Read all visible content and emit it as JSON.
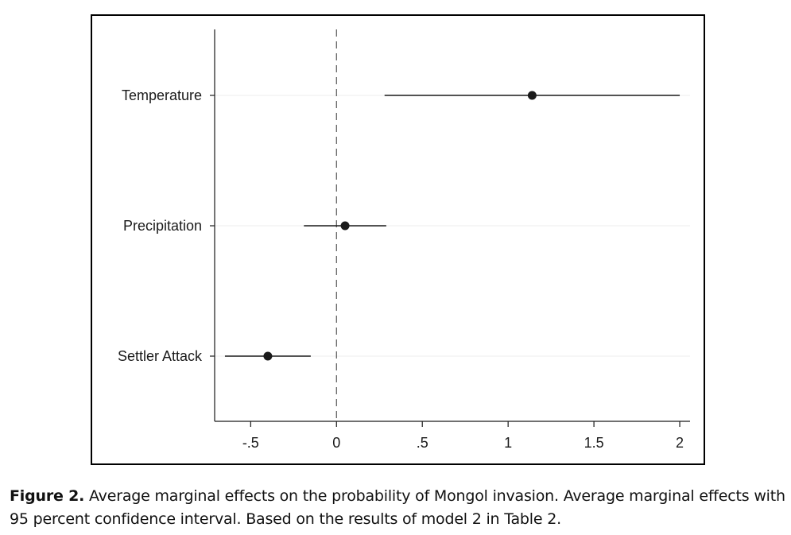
{
  "chart_data": {
    "type": "coefficient-plot",
    "categories": [
      "Temperature",
      "Precipitation",
      "Settler Attack"
    ],
    "series": [
      {
        "points": [
          {
            "category": "Temperature",
            "estimate": 1.14,
            "ci_low": 0.28,
            "ci_high": 2.0
          },
          {
            "category": "Precipitation",
            "estimate": 0.05,
            "ci_low": -0.19,
            "ci_high": 0.29
          },
          {
            "category": "Settler Attack",
            "estimate": -0.4,
            "ci_low": -0.65,
            "ci_high": -0.15
          }
        ]
      }
    ],
    "x_ticks": [
      "-.5",
      "0",
      ".5",
      "1",
      "1.5",
      "2"
    ],
    "x_tick_values": [
      -0.5,
      0,
      0.5,
      1,
      1.5,
      2
    ],
    "xlim": [
      -0.71,
      2.06
    ],
    "reference_line": {
      "x": 0,
      "style": "dashed"
    },
    "xlabel": "",
    "ylabel": "",
    "title": "",
    "grid": "horizontal-light",
    "colors": {
      "marker": "#1a1a1a",
      "ci": "#1a1a1a",
      "grid": "#eeeeee",
      "axis": "#1a1a1a"
    }
  },
  "caption": {
    "label": "Figure 2.",
    "text": "Average marginal effects on the probability of Mongol invasion. Average marginal effects with 95 percent confidence interval. Based on the results of model 2 in Table 2."
  }
}
